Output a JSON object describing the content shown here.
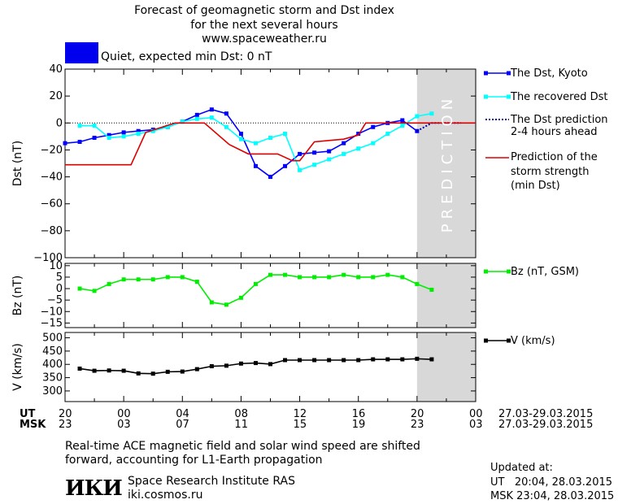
{
  "header": {
    "title_line1": "Forecast of geomagnetic storm and Dst index",
    "title_line2": "for the next several hours",
    "title_line3": "www.spaceweather.ru",
    "status_text": "Quiet, expected min Dst: 0 nT",
    "status_color": "#0000ee"
  },
  "legend": {
    "dst_kyoto": "The Dst, Kyoto",
    "dst_recovered": "The recovered Dst",
    "dst_pred_line1": "The Dst prediction",
    "dst_pred_line2": "2-4 hours ahead",
    "storm_line1": "Prediction of the",
    "storm_line2": "storm strength",
    "storm_line3": "(min Dst)",
    "bz": "Bz (nT, GSM)",
    "v": "V (km/s)"
  },
  "prediction_label": "PREDICTION",
  "x_axis": {
    "ut_label": "UT",
    "msk_label": "MSK",
    "ut_ticks": [
      "20",
      "00",
      "04",
      "08",
      "12",
      "16",
      "20",
      "00"
    ],
    "msk_ticks": [
      "23",
      "03",
      "07",
      "11",
      "15",
      "19",
      "23",
      "03"
    ],
    "ut_range": "27.03-29.03.2015",
    "msk_range": "27.03-29.03.2015"
  },
  "footer": {
    "note_line1": "Real-time ACE magnetic field and solar wind speed are shifted",
    "note_line2": "forward, accounting for L1-Earth propagation",
    "logo_text": "ИКИ",
    "institute": "Space Research Institute RAS",
    "site": "iki.cosmos.ru",
    "updated_label": "Updated at:",
    "updated_ut": "UT   20:04, 28.03.2015",
    "updated_msk": "MSK 23:04, 28.03.2015"
  },
  "chart_data": [
    {
      "type": "line",
      "ylabel": "Dst (nT)",
      "ylim": [
        -100,
        40
      ],
      "yticks": [
        40,
        20,
        0,
        -20,
        -40,
        -60,
        -80,
        -100
      ],
      "x_unit": "hours from 20 UT 27.03",
      "xlim": [
        0,
        28
      ],
      "prediction_start": 24,
      "series": [
        {
          "name": "The Dst, Kyoto",
          "color": "#0000ff",
          "x": [
            0,
            1,
            2,
            3,
            4,
            5,
            6,
            7,
            8,
            9,
            10,
            11,
            12,
            13,
            14,
            15,
            16,
            17,
            18,
            19,
            20,
            21,
            22,
            23,
            24
          ],
          "y": [
            -15,
            -14,
            -11,
            -9,
            -7,
            -6,
            -5,
            -3,
            1,
            6,
            10,
            7,
            -8,
            -32,
            -40,
            -32,
            -23,
            -22,
            -21,
            -15,
            -8,
            -3,
            0,
            2,
            -6
          ]
        },
        {
          "name": "The recovered Dst",
          "color": "#00ffff",
          "x": [
            1,
            2,
            3,
            4,
            5,
            6,
            7,
            8,
            9,
            10,
            11,
            12,
            13,
            14,
            15,
            16,
            17,
            18,
            19,
            20,
            21,
            22,
            23,
            24,
            25
          ],
          "y": [
            -2,
            -2,
            -11,
            -10,
            -8,
            -6,
            -3,
            1,
            3,
            4,
            -3,
            -12,
            -15,
            -11,
            -8,
            -35,
            -31,
            -27,
            -23,
            -19,
            -15,
            -8,
            -2,
            5,
            7
          ]
        },
        {
          "name": "The Dst prediction 2-4 hours ahead",
          "color": "#0000aa",
          "dashed": true,
          "x": [
            24,
            25,
            26,
            27
          ],
          "y": [
            -6,
            0,
            0,
            0
          ]
        },
        {
          "name": "Prediction of the storm strength (min Dst)",
          "color": "#dd0000",
          "step": true,
          "x": [
            0,
            4.5,
            5.5,
            7.5,
            9.5,
            11.2,
            12.5,
            14.5,
            15.5,
            16,
            17,
            18,
            19,
            20,
            20.5,
            24,
            28
          ],
          "y": [
            -31,
            -31,
            -7,
            0,
            0,
            -16,
            -23,
            -23,
            -28,
            -28,
            -14,
            -13,
            -12,
            -9,
            0,
            0,
            0
          ]
        }
      ]
    },
    {
      "type": "line",
      "ylabel": "Bz (nT)",
      "ylim": [
        -17,
        11
      ],
      "yticks": [
        10,
        5,
        0,
        -5,
        -10,
        -15
      ],
      "series": [
        {
          "name": "Bz (nT, GSM)",
          "color": "#00ee00",
          "x": [
            1,
            2,
            3,
            4,
            5,
            6,
            7,
            8,
            9,
            10,
            11,
            12,
            13,
            14,
            15,
            16,
            17,
            18,
            19,
            20,
            21,
            22,
            23,
            24,
            25
          ],
          "y": [
            0,
            -1,
            2,
            4,
            4,
            4,
            5,
            5,
            3,
            -6,
            -7,
            -4,
            2,
            6,
            6,
            5,
            5,
            5,
            6,
            5,
            5,
            6,
            5,
            2,
            -0.5
          ]
        }
      ]
    },
    {
      "type": "line",
      "ylabel": "V (km/s)",
      "ylim": [
        260,
        520
      ],
      "yticks": [
        500,
        450,
        400,
        350,
        300
      ],
      "series": [
        {
          "name": "V (km/s)",
          "color": "#000000",
          "x": [
            1,
            2,
            3,
            4,
            5,
            6,
            7,
            8,
            9,
            10,
            11,
            12,
            13,
            14,
            15,
            16,
            17,
            18,
            19,
            20,
            21,
            22,
            23,
            24,
            25
          ],
          "y": [
            384,
            376,
            377,
            376,
            366,
            365,
            372,
            373,
            382,
            393,
            395,
            403,
            405,
            401,
            416,
            416,
            416,
            416,
            416,
            416,
            419,
            419,
            419,
            421,
            419
          ]
        }
      ]
    }
  ]
}
